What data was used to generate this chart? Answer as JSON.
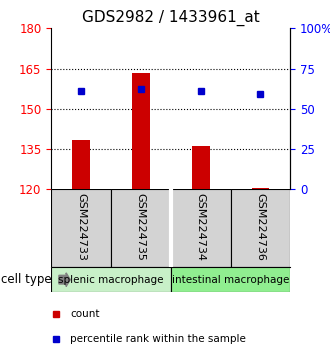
{
  "title": "GDS2982 / 1433961_at",
  "samples": [
    "GSM224733",
    "GSM224735",
    "GSM224734",
    "GSM224736"
  ],
  "bar_values": [
    138.5,
    163.5,
    136.0,
    120.5
  ],
  "bar_baseline": 120,
  "bar_color": "#cc0000",
  "dot_values": [
    156.5,
    157.5,
    156.5,
    155.5
  ],
  "dot_color": "#0000cc",
  "ylim_left": [
    120,
    180
  ],
  "ylim_right": [
    0,
    100
  ],
  "yticks_left": [
    120,
    135,
    150,
    165,
    180
  ],
  "yticks_right": [
    0,
    25,
    50,
    75,
    100
  ],
  "ytick_labels_left": [
    "120",
    "135",
    "150",
    "165",
    "180"
  ],
  "ytick_labels_right": [
    "0",
    "25",
    "50",
    "75",
    "100%"
  ],
  "hlines": [
    135,
    150,
    165
  ],
  "cell_types": [
    {
      "label": "splenic macrophage",
      "color": "#c8f0c8"
    },
    {
      "label": "intestinal macrophage",
      "color": "#90ee90"
    }
  ],
  "cell_type_label": "cell type",
  "legend": [
    {
      "label": "count",
      "color": "#cc0000"
    },
    {
      "label": "percentile rank within the sample",
      "color": "#0000cc"
    }
  ],
  "sample_box_color": "#d3d3d3",
  "bar_width": 0.3,
  "title_fontsize": 11,
  "tick_fontsize": 8.5,
  "sample_fontsize": 8,
  "legend_fontsize": 7.5,
  "celltype_fontsize": 7.5
}
